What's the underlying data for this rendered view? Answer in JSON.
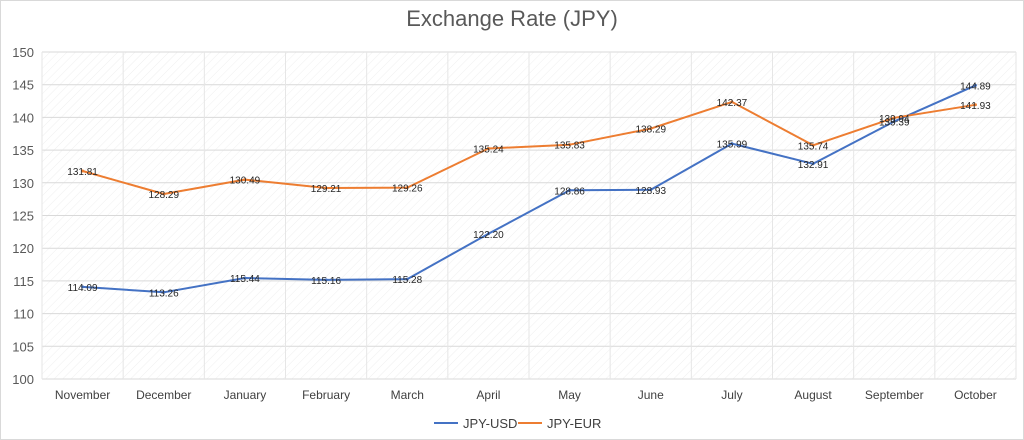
{
  "chart_data": {
    "type": "line",
    "title": "Exchange Rate (JPY)",
    "xlabel": "",
    "ylabel": "",
    "categories": [
      "November",
      "December",
      "January",
      "February",
      "March",
      "April",
      "May",
      "June",
      "July",
      "August",
      "September",
      "October"
    ],
    "ylim": [
      100,
      150
    ],
    "yticks": [
      100,
      105,
      110,
      115,
      120,
      125,
      130,
      135,
      140,
      145,
      150
    ],
    "grid": true,
    "legend": "bottom",
    "series": [
      {
        "name": "JPY-USD",
        "color": "#4472c4",
        "values": [
          114.09,
          113.26,
          115.44,
          115.16,
          115.28,
          122.2,
          128.86,
          128.93,
          135.99,
          132.91,
          139.39,
          144.89
        ],
        "labels": [
          "114.09",
          "113.26",
          "115.44",
          "115.16",
          "115.28",
          "122.20",
          "128.86",
          "128.93",
          "135.99",
          "132.91",
          "139.39",
          "144.89"
        ]
      },
      {
        "name": "JPY-EUR",
        "color": "#ed7d31",
        "values": [
          131.81,
          128.29,
          130.49,
          129.21,
          129.26,
          135.24,
          135.83,
          138.29,
          142.37,
          135.74,
          139.94,
          141.93
        ],
        "labels": [
          "131.81",
          "128.29",
          "130.49",
          "129.21",
          "129.26",
          "135.24",
          "135.83",
          "138.29",
          "142.37",
          "135.74",
          "139.94",
          "141.93"
        ]
      }
    ]
  }
}
